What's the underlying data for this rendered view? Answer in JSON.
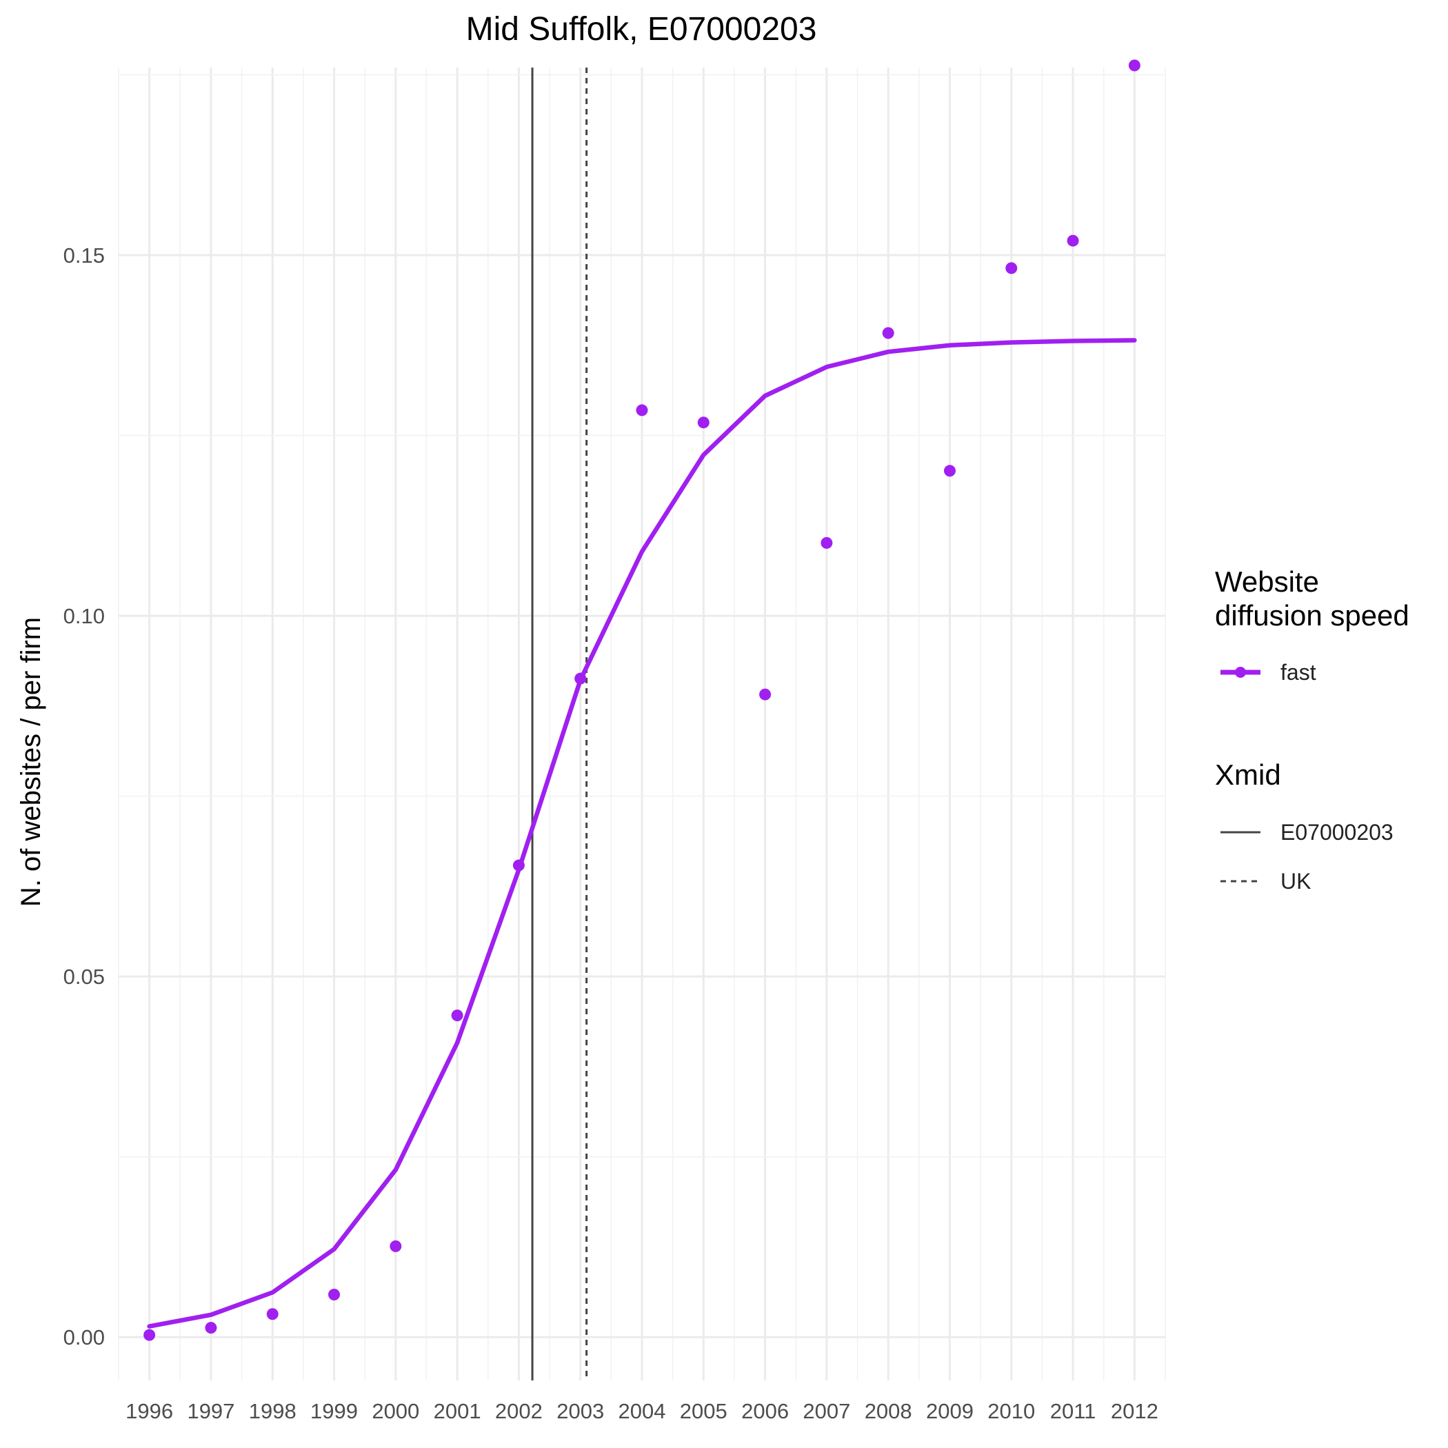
{
  "chart_data": {
    "type": "line",
    "title": "Mid Suffolk, E07000203",
    "xlabel": "",
    "ylabel": "N. of websites / per firm",
    "x": [
      1996,
      1997,
      1998,
      1999,
      2000,
      2001,
      2002,
      2003,
      2004,
      2005,
      2006,
      2007,
      2008,
      2009,
      2010,
      2011,
      2012
    ],
    "x_tick_labels": [
      "1996",
      "1997",
      "1998",
      "1999",
      "2000",
      "2001",
      "2002",
      "2003",
      "2004",
      "2005",
      "2006",
      "2007",
      "2008",
      "2009",
      "2010",
      "2011",
      "2012"
    ],
    "xlim": [
      1995.5,
      2012.5
    ],
    "ylim": [
      -0.006,
      0.176
    ],
    "y_ticks": [
      0.0,
      0.05,
      0.1,
      0.15
    ],
    "y_tick_labels": [
      "0.00",
      "0.05",
      "0.10",
      "0.15"
    ],
    "grid": true,
    "legend_position": "right",
    "series": [
      {
        "name": "fast",
        "color": "#a020f0",
        "points": [
          0.0003,
          0.0013,
          0.0032,
          0.0059,
          0.0126,
          0.0446,
          0.0654,
          0.0913,
          0.1285,
          0.1268,
          0.0891,
          0.1101,
          0.1392,
          0.1201,
          0.1482,
          0.152,
          0.1763
        ],
        "fitted": [
          0.0015,
          0.0031,
          0.0062,
          0.0122,
          0.0232,
          0.0408,
          0.0648,
          0.0911,
          0.1089,
          0.1223,
          0.1305,
          0.1345,
          0.1366,
          0.1375,
          0.1379,
          0.1381,
          0.1382
        ]
      }
    ],
    "vlines": [
      {
        "name": "E07000203",
        "x": 2002.22,
        "style": "solid",
        "color": "#444444"
      },
      {
        "name": "UK",
        "x": 2003.1,
        "style": "dashed",
        "color": "#444444"
      }
    ],
    "legend": {
      "speed_title_line1": "Website",
      "speed_title_line2": "diffusion speed",
      "speed_item": "fast",
      "xmid_title": "Xmid",
      "xmid_items": [
        "E07000203",
        "UK"
      ]
    }
  }
}
